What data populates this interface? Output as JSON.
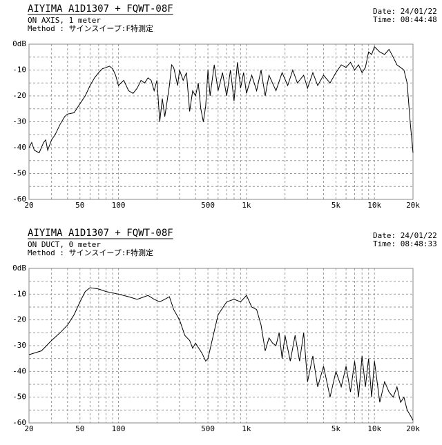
{
  "chart_data": [
    {
      "type": "line",
      "title": "AIYIMA  A1D1307 + FQWT-08F",
      "subtitle": [
        "ON AXIS, 1 meter",
        "Method : サインスイープ:F特測定"
      ],
      "date": "Date: 24/01/22",
      "time": "Time: 08:44:48",
      "xscale": "log",
      "grid": true,
      "xlim": [
        20,
        20000
      ],
      "ylim": [
        -60,
        0
      ],
      "xticks": [
        20,
        50,
        100,
        500,
        {
          "value": 1000,
          "label": "1k"
        },
        {
          "value": 5000,
          "label": "5k"
        },
        {
          "value": 10000,
          "label": "10k"
        },
        {
          "value": 20000,
          "label": "20k"
        }
      ],
      "xminor": [
        30,
        40,
        60,
        70,
        80,
        90,
        200,
        300,
        400,
        600,
        700,
        800,
        900,
        2000,
        3000,
        4000,
        6000,
        7000,
        8000,
        9000
      ],
      "yticks": [
        {
          "value": 0,
          "label": "0dB"
        },
        -10,
        -20,
        -30,
        -40,
        -50,
        -60
      ],
      "yminor": [
        -5,
        -15,
        -25,
        -35,
        -45,
        -55
      ],
      "series": [
        {
          "color": "#000000",
          "x": [
            20,
            21,
            22,
            24,
            26,
            27,
            28,
            30,
            32,
            35,
            38,
            40,
            45,
            50,
            55,
            60,
            65,
            70,
            75,
            80,
            85,
            90,
            95,
            100,
            110,
            120,
            130,
            140,
            150,
            160,
            170,
            180,
            190,
            200,
            210,
            220,
            230,
            240,
            250,
            260,
            270,
            290,
            300,
            320,
            340,
            360,
            380,
            400,
            420,
            440,
            460,
            480,
            500,
            520,
            560,
            600,
            650,
            700,
            750,
            800,
            850,
            900,
            950,
            1000,
            1100,
            1200,
            1300,
            1400,
            1500,
            1700,
            1900,
            2100,
            2300,
            2500,
            2800,
            3000,
            3300,
            3600,
            4000,
            4500,
            5000,
            5500,
            6000,
            6500,
            7000,
            7500,
            8000,
            8500,
            9000,
            9500,
            10000,
            11000,
            12000,
            13000,
            14000,
            15000,
            16000,
            17000,
            18000,
            19000,
            20000
          ],
          "values": [
            -40,
            -38,
            -41,
            -42,
            -38,
            -37,
            -41,
            -37,
            -35,
            -31,
            -28,
            -27,
            -26.5,
            -23,
            -20,
            -16,
            -13,
            -11,
            -9.5,
            -9,
            -8.5,
            -9.5,
            -12,
            -16,
            -14,
            -18,
            -19,
            -17,
            -14,
            -15,
            -13,
            -14,
            -18,
            -14,
            -30,
            -21,
            -28,
            -22,
            -16,
            -8,
            -9,
            -16,
            -10,
            -14,
            -11,
            -26,
            -18,
            -20,
            -15,
            -25,
            -30,
            -24,
            -10,
            -20,
            -8,
            -18,
            -11,
            -20,
            -10,
            -22,
            -7,
            -17,
            -11,
            -19,
            -12,
            -18,
            -10,
            -20,
            -12,
            -18,
            -11,
            -16,
            -10,
            -15,
            -12,
            -17,
            -11,
            -16,
            -12,
            -15,
            -11,
            -8,
            -9,
            -7,
            -10,
            -8,
            -11,
            -9,
            -3,
            -4,
            -1,
            -3,
            -4,
            -2,
            -5,
            -8,
            -9,
            -10,
            -15,
            -30,
            -42
          ]
        }
      ]
    },
    {
      "type": "line",
      "title": "AIYIMA  A1D1307 + FQWT-08F",
      "subtitle": [
        "ON DUCT, 0 meter",
        "Method : サインスイープ:F特測定"
      ],
      "date": "Date: 24/01/22",
      "time": "Time: 08:48:33",
      "xscale": "log",
      "grid": true,
      "xlim": [
        20,
        20000
      ],
      "ylim": [
        -60,
        0
      ],
      "xticks": [
        20,
        50,
        100,
        500,
        {
          "value": 1000,
          "label": "1k"
        },
        {
          "value": 5000,
          "label": "5k"
        },
        {
          "value": 10000,
          "label": "10k"
        },
        {
          "value": 20000,
          "label": "20k"
        }
      ],
      "xminor": [
        30,
        40,
        60,
        70,
        80,
        90,
        200,
        300,
        400,
        600,
        700,
        800,
        900,
        2000,
        3000,
        4000,
        6000,
        7000,
        8000,
        9000
      ],
      "yticks": [
        {
          "value": 0,
          "label": "0dB"
        },
        -10,
        -20,
        -30,
        -40,
        -50,
        -60
      ],
      "yminor": [
        -5,
        -15,
        -25,
        -35,
        -45,
        -55
      ],
      "series": [
        {
          "color": "#000000",
          "x": [
            20,
            25,
            30,
            35,
            40,
            45,
            50,
            55,
            60,
            70,
            80,
            100,
            120,
            140,
            150,
            170,
            190,
            210,
            230,
            250,
            270,
            300,
            330,
            360,
            380,
            400,
            450,
            480,
            500,
            550,
            600,
            700,
            800,
            900,
            1000,
            1100,
            1200,
            1300,
            1400,
            1500,
            1600,
            1700,
            1800,
            1900,
            2000,
            2200,
            2400,
            2600,
            2800,
            3000,
            3300,
            3600,
            4000,
            4500,
            5000,
            5500,
            6000,
            6500,
            7000,
            7500,
            8000,
            8500,
            9000,
            9500,
            10000,
            11000,
            12000,
            13000,
            14000,
            15000,
            16000,
            17000,
            18000,
            19000,
            20000
          ],
          "values": [
            -33.5,
            -32,
            -28,
            -25,
            -22,
            -18,
            -13,
            -9,
            -7.5,
            -8,
            -9,
            -10,
            -11,
            -12,
            -11.5,
            -10.5,
            -12,
            -13,
            -12,
            -11,
            -16,
            -20,
            -26,
            -28,
            -31,
            -29,
            -33,
            -36,
            -35,
            -26,
            -18,
            -13,
            -12,
            -13,
            -10.5,
            -15,
            -16,
            -22,
            -32,
            -27,
            -29,
            -30,
            -25,
            -35,
            -26,
            -36,
            -26,
            -36,
            -25,
            -44,
            -34,
            -46,
            -38,
            -50,
            -40,
            -46,
            -38,
            -48,
            -36,
            -50,
            -34,
            -46,
            -35,
            -50,
            -36,
            -52,
            -44,
            -48,
            -50,
            -46,
            -52,
            -50,
            -55,
            -57,
            -59
          ]
        }
      ]
    }
  ]
}
